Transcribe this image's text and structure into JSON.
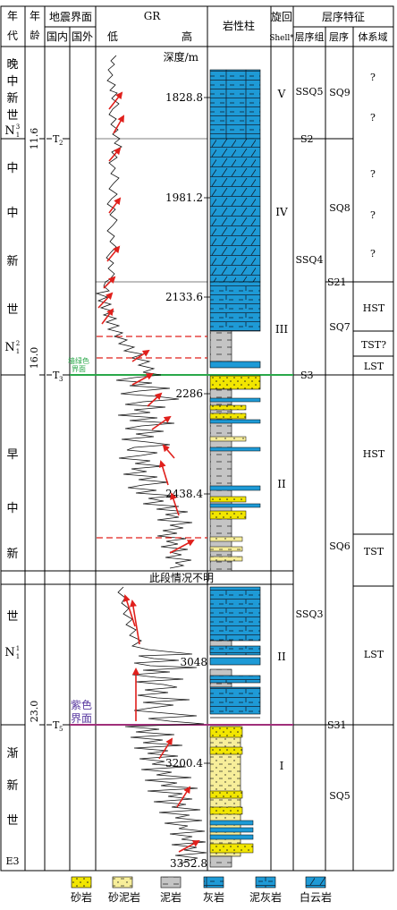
{
  "headers": {
    "age_era": "年代",
    "age_ma": "年龄 Ma",
    "seismic": "地震界面",
    "seismic_domestic": "国内",
    "seismic_foreign": "国外",
    "gr": "GR",
    "gr_low": "低",
    "gr_high": "高",
    "litho": "岩性柱",
    "cycle": "旋回",
    "cycle_en": "Shell*",
    "sequence_features": "层序特征",
    "sequence_group": "层序组",
    "sequence": "层序",
    "systems_tract": "体系域"
  },
  "depth_title": "深度/m",
  "depths": [
    "1828.8",
    "1981.2",
    "2133.6",
    "2286",
    "2438.4",
    "3048",
    "3200.4",
    "3352.8"
  ],
  "eras": {
    "late_miocene": [
      "晚",
      "中",
      "新",
      "世"
    ],
    "late_miocene_code": "N",
    "late_miocene_sub": "1",
    "late_miocene_sup": "3",
    "middle_miocene": [
      "中",
      "中",
      "新",
      "世"
    ],
    "middle_miocene_code": "N",
    "middle_miocene_sub": "1",
    "middle_miocene_sup": "2",
    "early_miocene": [
      "早",
      "中",
      "新",
      "世"
    ],
    "early_miocene_code": "N",
    "early_miocene_sub": "1",
    "early_miocene_sup": "1",
    "oligocene": [
      "渐",
      "新",
      "世"
    ],
    "oligocene_code": "E3"
  },
  "ages": [
    "11.6",
    "16.0",
    "23.0"
  ],
  "seismic_tops": [
    {
      "code": "T",
      "sub": "2"
    },
    {
      "code": "T",
      "sub": "3"
    },
    {
      "code": "T",
      "sub": "5"
    }
  ],
  "marker_green": [
    "墙绿色",
    "界面"
  ],
  "marker_purple": [
    "紫色",
    "界面"
  ],
  "gap_note": "此段情况不明",
  "cycles": [
    "V",
    "IV",
    "III",
    "II",
    "II",
    "I"
  ],
  "sequence_groups": [
    "SSQ5",
    "SSQ4",
    "SSQ3"
  ],
  "boundaries": [
    "S2",
    "S21",
    "S3",
    "S31"
  ],
  "sequences": [
    "SQ9",
    "SQ8",
    "SQ7",
    "SQ6",
    "SQ5"
  ],
  "tracts": {
    "q": "?",
    "hst": "HST",
    "tst_q": "TST?",
    "lst": "LST",
    "tst": "TST"
  },
  "legend": [
    "砂岩",
    "砂泥岩",
    "泥岩",
    "灰岩",
    "泥灰岩",
    "白云岩"
  ],
  "colors": {
    "limestone": "#1e9ad6",
    "sand": "#f2e600",
    "sandmud": "#f7ee9a",
    "mud": "#bdbdbd",
    "arrow": "#e0201c",
    "green_line": "#2aa84a",
    "purple_line": "#a0307a"
  }
}
